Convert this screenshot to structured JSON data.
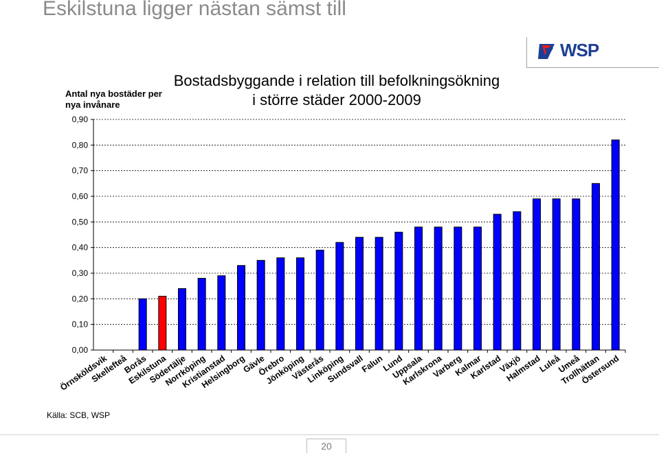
{
  "slide": {
    "title": "Eskilstuna ligger nästan sämst till",
    "logo_text": "WSP",
    "source": "Källa: SCB, WSP",
    "page_number": "20"
  },
  "chart_data": {
    "type": "bar",
    "title_line1": "Bostadsbyggande i relation till befolkningsökning",
    "title_line2": "i större städer 2000-2009",
    "ylabel": "Antal nya bostäder per nya invånare",
    "ylim": [
      0,
      0.9
    ],
    "yticks": [
      "0,00",
      "0,10",
      "0,20",
      "0,30",
      "0,40",
      "0,50",
      "0,60",
      "0,70",
      "0,80",
      "0,90"
    ],
    "grid": true,
    "categories": [
      "Örnsköldsvik",
      "Skellefteå",
      "Borås",
      "Eskilstuna",
      "Södertälje",
      "Norrköping",
      "Kristianstad",
      "Helsingborg",
      "Gävle",
      "Örebro",
      "Jönköping",
      "Västerås",
      "Linköping",
      "Sundsvall",
      "Falun",
      "Lund",
      "Uppsala",
      "Karlskrona",
      "Varberg",
      "Kalmar",
      "Karlstad",
      "Växjö",
      "Halmstad",
      "Luleå",
      "Umeå",
      "Trollhättan",
      "Östersund"
    ],
    "values": [
      0.0,
      0.0,
      0.2,
      0.21,
      0.24,
      0.28,
      0.29,
      0.33,
      0.35,
      0.36,
      0.36,
      0.39,
      0.42,
      0.44,
      0.44,
      0.46,
      0.48,
      0.48,
      0.48,
      0.48,
      0.53,
      0.54,
      0.59,
      0.59,
      0.59,
      0.65,
      0.82
    ],
    "bar_color": "#0000ff",
    "highlight_color": "#ff0000",
    "highlight_category": "Eskilstuna"
  }
}
